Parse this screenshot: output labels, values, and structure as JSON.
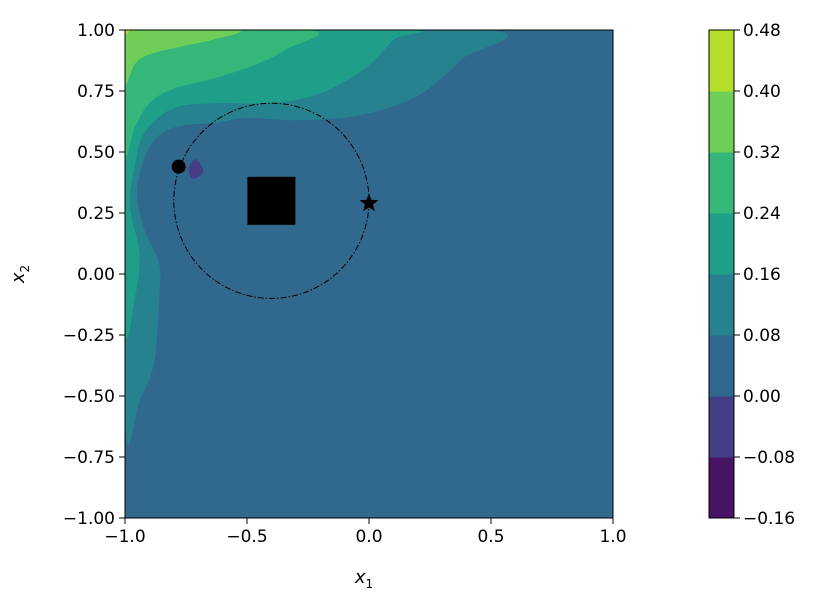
{
  "chart_data": {
    "type": "contour",
    "xlabel": "x",
    "xlabel_sub": "1",
    "ylabel": "x",
    "ylabel_sub": "2",
    "xlim": [
      -1.0,
      1.0
    ],
    "ylim": [
      -1.0,
      1.0
    ],
    "x_ticks": [
      "−1.0",
      "−0.5",
      "0.0",
      "0.5",
      "1.0"
    ],
    "x_tick_values": [
      -1.0,
      -0.5,
      0.0,
      0.5,
      1.0
    ],
    "y_ticks": [
      "−1.00",
      "−0.75",
      "−0.50",
      "−0.25",
      "0.00",
      "0.25",
      "0.50",
      "0.75",
      "1.00"
    ],
    "y_tick_values": [
      -1.0,
      -0.75,
      -0.5,
      -0.25,
      0.0,
      0.25,
      0.5,
      0.75,
      1.0
    ],
    "colorbar": {
      "levels": [
        -0.16,
        -0.08,
        0.0,
        0.08,
        0.16,
        0.24,
        0.32,
        0.4,
        0.48
      ],
      "tick_labels": [
        "−0.16",
        "−0.08",
        "0.00",
        "0.08",
        "0.16",
        "0.24",
        "0.32",
        "0.40",
        "0.48"
      ],
      "colors": [
        "#471365",
        "#433e85",
        "#31688e",
        "#26828e",
        "#1f9e89",
        "#35b779",
        "#6ece58",
        "#b5de2b",
        "#e3e418"
      ]
    },
    "markers": {
      "circle": {
        "center": [
          -0.4,
          0.3
        ],
        "radius": 0.4,
        "style": "dash-dot"
      },
      "square": {
        "x": -0.4,
        "y": 0.3
      },
      "dot": {
        "x": -0.78,
        "y": 0.44
      },
      "star": {
        "x": 0.0,
        "y": 0.29
      }
    },
    "regions": [
      {
        "level": 1,
        "points": [
          [
            -0.71,
            0.47
          ],
          [
            -0.68,
            0.42
          ],
          [
            -0.72,
            0.39
          ],
          [
            -0.74,
            0.43
          ]
        ]
      },
      {
        "level": 2,
        "points": [
          [
            -0.87,
            0.4
          ],
          [
            -0.82,
            0.5
          ],
          [
            -0.74,
            0.52
          ],
          [
            -0.64,
            0.46
          ],
          [
            -0.56,
            0.38
          ],
          [
            -0.48,
            0.3
          ],
          [
            -0.38,
            0.24
          ],
          [
            -0.24,
            0.33
          ],
          [
            -0.12,
            0.39
          ],
          [
            0.02,
            0.4
          ],
          [
            0.12,
            0.34
          ],
          [
            0.28,
            0.22
          ],
          [
            0.44,
            0.1
          ],
          [
            0.56,
            0.0
          ],
          [
            0.89,
            -0.1
          ],
          [
            0.87,
            -0.26
          ],
          [
            0.74,
            -0.35
          ],
          [
            0.58,
            -0.38
          ],
          [
            0.36,
            -0.4
          ],
          [
            0.18,
            -0.32
          ],
          [
            0.06,
            -0.26
          ],
          [
            -0.1,
            -0.1
          ],
          [
            -0.24,
            0.02
          ],
          [
            -0.34,
            0.12
          ],
          [
            -0.46,
            0.18
          ],
          [
            -0.62,
            0.2
          ],
          [
            -0.76,
            0.22
          ],
          [
            -0.88,
            0.28
          ]
        ]
      },
      {
        "level": 2,
        "points": [
          [
            1.0,
            0.38
          ],
          [
            0.99,
            0.32
          ],
          [
            0.97,
            0.18
          ],
          [
            0.96,
            0.04
          ],
          [
            0.98,
            -0.06
          ],
          [
            1.0,
            -0.1
          ]
        ]
      },
      {
        "level": 3,
        "points": [
          [
            -1.0,
            -0.6
          ],
          [
            -0.94,
            -0.52
          ],
          [
            -0.88,
            -0.36
          ],
          [
            -0.86,
            -0.1
          ],
          [
            -0.86,
            0.04
          ],
          [
            -0.92,
            0.18
          ],
          [
            -0.95,
            0.34
          ],
          [
            -0.9,
            0.52
          ],
          [
            -0.8,
            0.6
          ],
          [
            -0.62,
            0.62
          ],
          [
            -0.5,
            0.64
          ],
          [
            -0.3,
            0.63
          ],
          [
            -0.04,
            0.65
          ],
          [
            0.2,
            0.73
          ],
          [
            0.38,
            0.88
          ],
          [
            0.48,
            1.0
          ],
          [
            -1.0,
            1.0
          ]
        ]
      },
      {
        "level": 4,
        "points": [
          [
            -1.0,
            -0.2
          ],
          [
            -0.96,
            -0.1
          ],
          [
            -0.94,
            0.08
          ],
          [
            -0.98,
            0.28
          ],
          [
            -0.96,
            0.44
          ],
          [
            -0.92,
            0.58
          ],
          [
            -0.8,
            0.68
          ],
          [
            -0.62,
            0.7
          ],
          [
            -0.4,
            0.7
          ],
          [
            -0.2,
            0.74
          ],
          [
            -0.02,
            0.84
          ],
          [
            0.1,
            0.96
          ],
          [
            0.14,
            1.0
          ],
          [
            -1.0,
            1.0
          ]
        ]
      },
      {
        "level": 5,
        "points": [
          [
            -1.0,
            0.5
          ],
          [
            -0.96,
            0.6
          ],
          [
            -0.9,
            0.7
          ],
          [
            -0.8,
            0.76
          ],
          [
            -0.64,
            0.8
          ],
          [
            -0.46,
            0.86
          ],
          [
            -0.34,
            0.92
          ],
          [
            -0.24,
            1.0
          ],
          [
            -1.0,
            1.0
          ]
        ]
      },
      {
        "level": 6,
        "points": [
          [
            -1.0,
            0.78
          ],
          [
            -0.96,
            0.86
          ],
          [
            -0.9,
            0.9
          ],
          [
            -0.78,
            0.93
          ],
          [
            -0.64,
            0.96
          ],
          [
            -0.54,
            1.0
          ],
          [
            -1.0,
            1.0
          ]
        ]
      },
      {
        "level": 7,
        "points": [
          [
            -1.0,
            0.98
          ],
          [
            -0.98,
            1.0
          ],
          [
            -1.0,
            1.0
          ]
        ]
      }
    ]
  }
}
